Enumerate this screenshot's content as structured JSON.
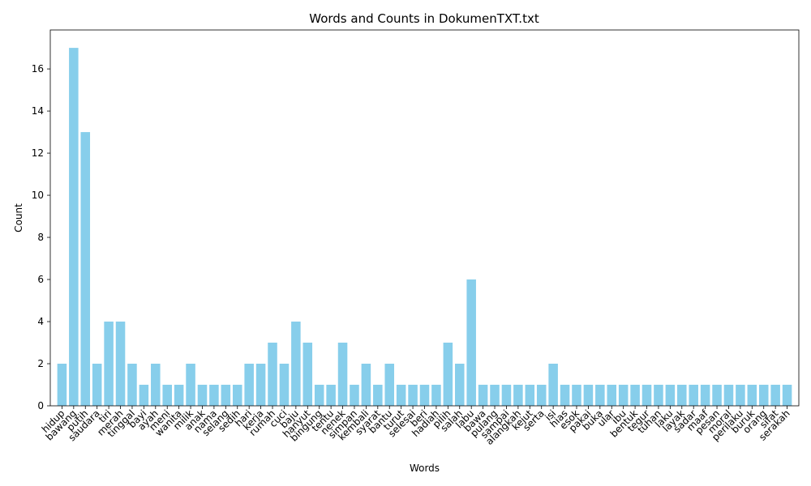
{
  "chart_data": {
    "type": "bar",
    "title": "Words and Counts in DokumenTXT.txt",
    "xlabel": "Words",
    "ylabel": "Count",
    "ylim": [
      0,
      17.85
    ],
    "yticks": [
      0,
      2,
      4,
      6,
      8,
      10,
      12,
      14,
      16
    ],
    "bar_color": "#87ceeb",
    "grid": false,
    "categories": [
      "hidup",
      "bawang",
      "putih",
      "saudara",
      "tiri",
      "merah",
      "tinggal",
      "bayi",
      "ayah",
      "meni",
      "wanita",
      "milik",
      "anak",
      "nama",
      "selang",
      "sedih",
      "hari",
      "kerja",
      "rumah",
      "cuci",
      "baju",
      "hanyut",
      "bingung",
      "tentu",
      "nenek",
      "simpan",
      "kembali",
      "syarat",
      "bantu",
      "turut",
      "selesai",
      "beri",
      "hadiah",
      "pilih",
      "salah",
      "labu",
      "bawa",
      "pulang",
      "sampai",
      "alangkah",
      "kejut",
      "serta",
      "isi",
      "hias",
      "esok",
      "pakai",
      "buka",
      "ular",
      "ibu",
      "bentuk",
      "tegur",
      "tuhan",
      "laku",
      "layak",
      "sadar",
      "maaf",
      "pesan",
      "moral",
      "perilaku",
      "buruk",
      "orang",
      "sifat",
      "serakah"
    ],
    "values": [
      2,
      17,
      13,
      2,
      4,
      4,
      2,
      1,
      2,
      1,
      1,
      2,
      1,
      1,
      1,
      1,
      2,
      2,
      3,
      2,
      4,
      3,
      1,
      1,
      3,
      1,
      2,
      1,
      2,
      1,
      1,
      1,
      1,
      3,
      2,
      6,
      1,
      1,
      1,
      1,
      1,
      1,
      2,
      1,
      1,
      1,
      1,
      1,
      1,
      1,
      1,
      1,
      1,
      1,
      1,
      1,
      1,
      1,
      1,
      1,
      1,
      1,
      1
    ]
  }
}
